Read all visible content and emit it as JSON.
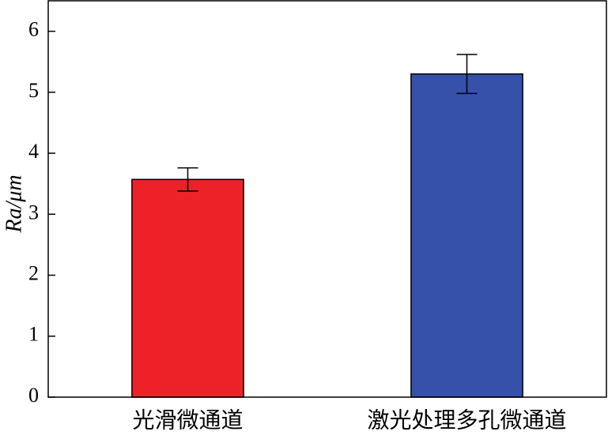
{
  "chart_data": {
    "type": "bar",
    "y_label": "Ra/μm",
    "categories": [
      "光滑微通道",
      "激光处理多孔微通道"
    ],
    "values": [
      3.57,
      5.3
    ],
    "errors": [
      0.19,
      0.32
    ],
    "colors": [
      "#ed2228",
      "#3651aa"
    ],
    "ylim": [
      0,
      6.5
    ],
    "yticks": [
      0,
      1,
      2,
      3,
      4,
      5,
      6
    ],
    "grid": false
  }
}
